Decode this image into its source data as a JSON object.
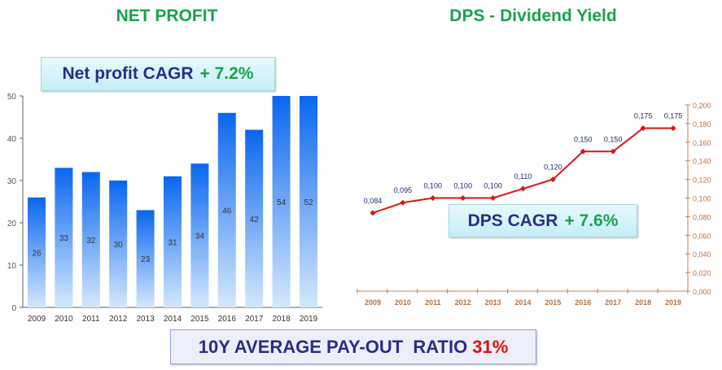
{
  "chart_data": [
    {
      "type": "bar",
      "title": "NET PROFIT",
      "categories": [
        "2009",
        "2010",
        "2011",
        "2012",
        "2013",
        "2014",
        "2015",
        "2016",
        "2017",
        "2018",
        "2019"
      ],
      "values": [
        26,
        33,
        32,
        30,
        23,
        31,
        34,
        46,
        42,
        54,
        52
      ],
      "ylim": [
        0,
        50
      ],
      "yticks": [
        "0",
        "10",
        "20",
        "30",
        "40",
        "50"
      ],
      "xlabel": "",
      "ylabel": "",
      "annotation": {
        "label": "Net profit CAGR",
        "value": "+ 7.2%"
      }
    },
    {
      "type": "line",
      "title": "DPS - Dividend Yield",
      "categories": [
        "2009",
        "2010",
        "2011",
        "2012",
        "2013",
        "2014",
        "2015",
        "2016",
        "2017",
        "2018",
        "2019"
      ],
      "values": [
        0.084,
        0.095,
        0.1,
        0.1,
        0.1,
        0.11,
        0.12,
        0.15,
        0.15,
        0.175,
        0.175
      ],
      "labels": [
        "0,084",
        "0,095",
        "0,100",
        "0,100",
        "0,100",
        "0,110",
        "0,120",
        "0,150",
        "0,150",
        "0,175",
        "0,175"
      ],
      "ylim": [
        0,
        0.2
      ],
      "yticks": [
        "0,000",
        "0,020",
        "0,040",
        "0,060",
        "0,080",
        "0,100",
        "0,120",
        "0,140",
        "0,160",
        "0,180",
        "0,200"
      ],
      "yaxis": "right",
      "annotation": {
        "label": "DPS CAGR",
        "value": "+ 7.6%"
      }
    }
  ],
  "footer": {
    "label": "10Y AVERAGE PAY-OUT  RATIO",
    "value": "31%"
  },
  "colors": {
    "title": "#1aa24e",
    "line": "#d81818",
    "bar": "#1a6ef0"
  }
}
